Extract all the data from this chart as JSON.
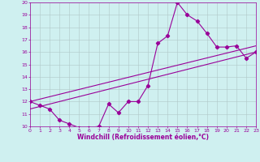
{
  "xlabel": "Windchill (Refroidissement éolien,°C)",
  "bg_color": "#cff0f0",
  "line_color": "#990099",
  "grid_color": "#b0c8c8",
  "ylim": [
    10,
    20
  ],
  "xlim": [
    0,
    23
  ],
  "yticks": [
    10,
    11,
    12,
    13,
    14,
    15,
    16,
    17,
    18,
    19,
    20
  ],
  "xticks": [
    0,
    1,
    2,
    3,
    4,
    5,
    6,
    7,
    8,
    9,
    10,
    11,
    12,
    13,
    14,
    15,
    16,
    17,
    18,
    19,
    20,
    21,
    22,
    23
  ],
  "line1_x": [
    0,
    1,
    2,
    3,
    4,
    5,
    6,
    7,
    8,
    9,
    10,
    11,
    12,
    13,
    14,
    15,
    16,
    17,
    18,
    19,
    20,
    21,
    22,
    23
  ],
  "line1_y": [
    12.0,
    11.7,
    11.4,
    10.5,
    10.2,
    9.9,
    9.9,
    10.0,
    11.8,
    11.1,
    12.0,
    12.0,
    13.3,
    16.7,
    17.3,
    20.0,
    19.0,
    18.5,
    17.5,
    16.4,
    16.4,
    16.5,
    15.5,
    16.0
  ],
  "line2_x": [
    0,
    23
  ],
  "line2_y": [
    12.0,
    16.5
  ],
  "line3_x": [
    0,
    23
  ],
  "line3_y": [
    11.4,
    16.0
  ],
  "marker": "D",
  "markersize": 2.2,
  "linewidth": 0.8,
  "tick_fontsize": 4.5,
  "label_fontsize": 5.5
}
